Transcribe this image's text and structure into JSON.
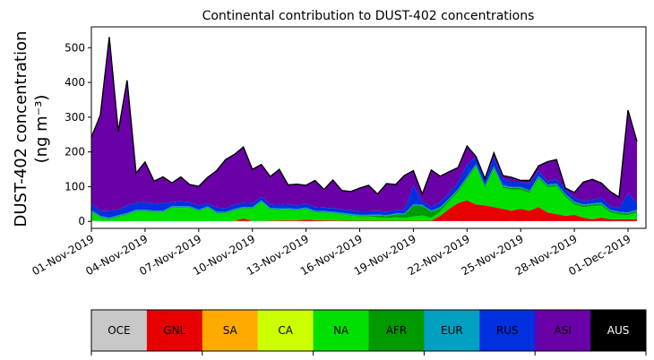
{
  "chart_data": {
    "type": "area",
    "title": "Continental contribution to DUST-402 concentrations",
    "ylabel_line1": "DUST-402 concentration",
    "ylabel_line2": "(ng m⁻³)",
    "xlabel": "",
    "xlim": [
      "2019-11-01",
      "2019-12-02"
    ],
    "ylim": [
      -20,
      560
    ],
    "yticks": [
      0,
      100,
      200,
      300,
      400,
      500
    ],
    "xticks": [
      {
        "date": "2019-11-01",
        "label": "01-Nov-2019"
      },
      {
        "date": "2019-11-04",
        "label": "04-Nov-2019"
      },
      {
        "date": "2019-11-07",
        "label": "07-Nov-2019"
      },
      {
        "date": "2019-11-10",
        "label": "10-Nov-2019"
      },
      {
        "date": "2019-11-13",
        "label": "13-Nov-2019"
      },
      {
        "date": "2019-11-16",
        "label": "16-Nov-2019"
      },
      {
        "date": "2019-11-19",
        "label": "19-Nov-2019"
      },
      {
        "date": "2019-11-22",
        "label": "22-Nov-2019"
      },
      {
        "date": "2019-11-25",
        "label": "25-Nov-2019"
      },
      {
        "date": "2019-11-28",
        "label": "28-Nov-2019"
      },
      {
        "date": "2019-12-01",
        "label": "01-Dec-2019"
      }
    ],
    "grid": false,
    "stacked": true,
    "total_line_color": "#000000",
    "x": [
      "2019-11-01 00:00",
      "2019-11-01 12:00",
      "2019-11-02 00:00",
      "2019-11-02 12:00",
      "2019-11-03 00:00",
      "2019-11-03 12:00",
      "2019-11-04 00:00",
      "2019-11-04 12:00",
      "2019-11-05 00:00",
      "2019-11-05 12:00",
      "2019-11-06 00:00",
      "2019-11-06 12:00",
      "2019-11-07 00:00",
      "2019-11-07 12:00",
      "2019-11-08 00:00",
      "2019-11-08 12:00",
      "2019-11-09 00:00",
      "2019-11-09 12:00",
      "2019-11-10 00:00",
      "2019-11-10 12:00",
      "2019-11-11 00:00",
      "2019-11-11 12:00",
      "2019-11-12 00:00",
      "2019-11-12 12:00",
      "2019-11-13 00:00",
      "2019-11-13 12:00",
      "2019-11-14 00:00",
      "2019-11-14 12:00",
      "2019-11-15 00:00",
      "2019-11-15 12:00",
      "2019-11-16 00:00",
      "2019-11-16 12:00",
      "2019-11-17 00:00",
      "2019-11-17 12:00",
      "2019-11-18 00:00",
      "2019-11-18 12:00",
      "2019-11-19 00:00",
      "2019-11-19 12:00",
      "2019-11-20 00:00",
      "2019-11-20 12:00",
      "2019-11-21 00:00",
      "2019-11-21 12:00",
      "2019-11-22 00:00",
      "2019-11-22 12:00",
      "2019-11-23 00:00",
      "2019-11-23 12:00",
      "2019-11-24 00:00",
      "2019-11-24 12:00",
      "2019-11-25 00:00",
      "2019-11-25 12:00",
      "2019-11-26 00:00",
      "2019-11-26 12:00",
      "2019-11-27 00:00",
      "2019-11-27 12:00",
      "2019-11-28 00:00",
      "2019-11-28 12:00",
      "2019-11-29 00:00",
      "2019-11-29 12:00",
      "2019-11-30 00:00",
      "2019-11-30 12:00",
      "2019-12-01 00:00",
      "2019-12-01 12:00"
    ],
    "series": [
      {
        "name": "OCE",
        "color": "#c8c8c8",
        "values": [
          2,
          1,
          1,
          1,
          1,
          1,
          1,
          1,
          1,
          1,
          1,
          1,
          1,
          1,
          1,
          1,
          1,
          1,
          1,
          1,
          1,
          1,
          1,
          1,
          1,
          1,
          1,
          1,
          1,
          1,
          1,
          1,
          1,
          1,
          1,
          1,
          1,
          1,
          1,
          1,
          1,
          1,
          1,
          1,
          1,
          1,
          1,
          1,
          1,
          1,
          1,
          1,
          1,
          1,
          1,
          1,
          1,
          1,
          1,
          1,
          1,
          1
        ]
      },
      {
        "name": "GNL",
        "color": "#e60000",
        "values": [
          0,
          0,
          0,
          0,
          0,
          0,
          0,
          0,
          0,
          0,
          0,
          0,
          0,
          0,
          0,
          0,
          0,
          8,
          0,
          0,
          1,
          2,
          2,
          2,
          4,
          3,
          2,
          2,
          1,
          1,
          1,
          1,
          1,
          1,
          1,
          1,
          1,
          1,
          1,
          15,
          35,
          52,
          60,
          48,
          45,
          40,
          35,
          30,
          35,
          30,
          40,
          25,
          20,
          15,
          18,
          10,
          5,
          10,
          5,
          5,
          5,
          5
        ]
      },
      {
        "name": "SA",
        "color": "#ffaa00",
        "values": [
          0,
          0,
          0,
          0,
          0,
          0,
          0,
          0,
          0,
          0,
          0,
          0,
          0,
          0,
          0,
          0,
          0,
          0,
          0,
          0,
          0,
          0,
          0,
          0,
          0,
          0,
          0,
          0,
          0,
          0,
          0,
          0,
          0,
          0,
          0,
          0,
          0,
          0,
          0,
          0,
          0,
          0,
          0,
          0,
          0,
          0,
          0,
          0,
          0,
          0,
          0,
          0,
          0,
          0,
          0,
          0,
          0,
          0,
          0,
          0,
          0,
          0
        ]
      },
      {
        "name": "CA",
        "color": "#ccff00",
        "values": [
          0,
          0,
          0,
          0,
          0,
          0,
          0,
          0,
          0,
          0,
          0,
          0,
          0,
          0,
          0,
          0,
          0,
          0,
          0,
          0,
          0,
          0,
          0,
          0,
          0,
          0,
          0,
          0,
          0,
          0,
          0,
          0,
          0,
          0,
          0,
          0,
          0,
          0,
          0,
          0,
          0,
          0,
          0,
          0,
          0,
          0,
          0,
          0,
          0,
          0,
          0,
          0,
          0,
          0,
          0,
          0,
          0,
          0,
          0,
          0,
          0,
          0
        ]
      },
      {
        "name": "NA",
        "color": "#00e000",
        "values": [
          25,
          10,
          5,
          12,
          18,
          28,
          28,
          25,
          25,
          38,
          38,
          38,
          28,
          38,
          22,
          22,
          30,
          28,
          35,
          55,
          32,
          30,
          30,
          28,
          30,
          22,
          22,
          20,
          18,
          15,
          12,
          12,
          10,
          8,
          10,
          8,
          12,
          15,
          8,
          12,
          22,
          32,
          60,
          108,
          50,
          110,
          60,
          60,
          55,
          50,
          82,
          72,
          80,
          55,
          30,
          30,
          38,
          35,
          20,
          14,
          12,
          20
        ]
      },
      {
        "name": "AFR",
        "color": "#009a00",
        "values": [
          2,
          2,
          2,
          2,
          2,
          2,
          2,
          2,
          2,
          2,
          2,
          2,
          2,
          2,
          2,
          2,
          2,
          2,
          2,
          2,
          2,
          2,
          2,
          2,
          2,
          2,
          2,
          2,
          2,
          2,
          2,
          2,
          5,
          5,
          8,
          10,
          32,
          28,
          18,
          10,
          5,
          5,
          5,
          5,
          5,
          5,
          5,
          5,
          5,
          5,
          5,
          5,
          5,
          5,
          5,
          5,
          5,
          5,
          5,
          5,
          5,
          5
        ]
      },
      {
        "name": "EUR",
        "color": "#00a0c0",
        "values": [
          3,
          3,
          3,
          3,
          3,
          3,
          3,
          3,
          3,
          3,
          3,
          3,
          3,
          3,
          3,
          3,
          3,
          3,
          3,
          3,
          3,
          3,
          3,
          3,
          3,
          3,
          3,
          3,
          3,
          3,
          3,
          3,
          3,
          3,
          3,
          3,
          3,
          3,
          3,
          3,
          3,
          3,
          3,
          3,
          3,
          3,
          3,
          3,
          3,
          3,
          3,
          3,
          3,
          3,
          3,
          3,
          3,
          3,
          3,
          3,
          3,
          3
        ]
      },
      {
        "name": "RUS",
        "color": "#0030e0",
        "values": [
          20,
          15,
          20,
          16,
          22,
          20,
          22,
          20,
          22,
          12,
          14,
          12,
          12,
          8,
          12,
          10,
          12,
          12,
          12,
          10,
          10,
          10,
          12,
          10,
          12,
          10,
          10,
          10,
          10,
          10,
          10,
          10,
          10,
          10,
          10,
          10,
          55,
          10,
          10,
          15,
          15,
          20,
          35,
          20,
          15,
          25,
          20,
          15,
          15,
          20,
          15,
          10,
          12,
          15,
          10,
          10,
          10,
          15,
          10,
          10,
          55,
          20
        ]
      },
      {
        "name": "ASI",
        "color": "#6a00a8",
        "values": [
          190,
          275,
          500,
          225,
          360,
          85,
          115,
          65,
          75,
          55,
          70,
          50,
          55,
          75,
          106,
          140,
          145,
          160,
          97,
          93,
          80,
          102,
          55,
          61,
          52,
          77,
          52,
          81,
          54,
          54,
          67,
          75,
          49,
          81,
          73,
          99,
          42,
          21,
          107,
          74,
          62,
          42,
          53,
          2,
          4,
          13,
          8,
          13,
          4,
          9,
          14,
          56,
          57,
          2,
          16,
          54,
          59,
          42,
          42,
          32,
          239,
          176
        ]
      },
      {
        "name": "AUS",
        "color": "#000000",
        "values": [
          0,
          0,
          0,
          0,
          0,
          0,
          0,
          0,
          0,
          0,
          0,
          0,
          0,
          0,
          0,
          0,
          0,
          0,
          0,
          0,
          0,
          0,
          0,
          0,
          0,
          0,
          0,
          0,
          0,
          0,
          0,
          0,
          0,
          0,
          0,
          0,
          0,
          0,
          0,
          0,
          0,
          0,
          0,
          0,
          0,
          0,
          0,
          0,
          0,
          0,
          0,
          0,
          0,
          0,
          0,
          0,
          0,
          0,
          0,
          0,
          0,
          0
        ]
      }
    ],
    "legend": {
      "placement": "bottom",
      "entries": [
        {
          "label": "OCE",
          "color": "#c8c8c8",
          "text_color": "#000000"
        },
        {
          "label": "GNL",
          "color": "#e60000",
          "text_color": "#000000"
        },
        {
          "label": "SA",
          "color": "#ffaa00",
          "text_color": "#000000"
        },
        {
          "label": "CA",
          "color": "#ccff00",
          "text_color": "#000000"
        },
        {
          "label": "NA",
          "color": "#00e000",
          "text_color": "#000000"
        },
        {
          "label": "AFR",
          "color": "#009a00",
          "text_color": "#000000"
        },
        {
          "label": "EUR",
          "color": "#00a0c0",
          "text_color": "#000000"
        },
        {
          "label": "RUS",
          "color": "#0030e0",
          "text_color": "#000000"
        },
        {
          "label": "ASI",
          "color": "#6a00a8",
          "text_color": "#000000"
        },
        {
          "label": "AUS",
          "color": "#000000",
          "text_color": "#ffffff"
        }
      ]
    }
  }
}
